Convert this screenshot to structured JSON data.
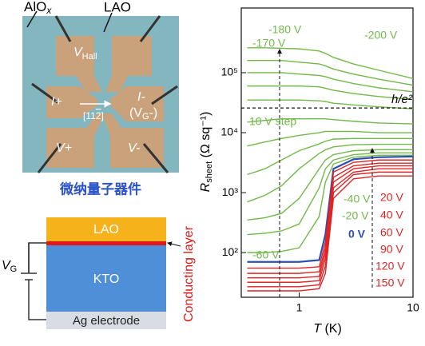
{
  "photo": {
    "labels": {
      "alox": "AlO",
      "alox_sub": "x",
      "lao": "LAO",
      "vhall": "V",
      "vhall_sub": "Hall",
      "iplus": "I+",
      "iminus": "I-",
      "vg_open": "(V",
      "vg_sub": "G",
      "vg_close": "-)",
      "direction": "[11",
      "direction_bar": "2",
      "direction_close": "]",
      "vplus": "V+",
      "vminus": "V-"
    },
    "caption": "微纳量子器件"
  },
  "schematic": {
    "lao": "LAO",
    "kto": "KTO",
    "electrode": "Ag electrode",
    "conducting": "Conducting layer",
    "vg": "V",
    "vg_sub": "G"
  },
  "chart_data": {
    "type": "line",
    "log_x": true,
    "log_y": true,
    "x": [
      0.35,
      0.5,
      0.7,
      1,
      1.5,
      1.7,
      2,
      3,
      5,
      10
    ],
    "xlim": [
      0.31,
      10
    ],
    "ylim": [
      18,
      1200000
    ],
    "xticks": [
      1,
      10
    ],
    "yticks": [
      {
        "value": 100,
        "label": "10²"
      },
      {
        "value": 1000,
        "label": "10³"
      },
      {
        "value": 10000,
        "label": "10⁴"
      },
      {
        "value": 100000,
        "label": "10⁵"
      }
    ],
    "xlabel": {
      "symbol": "T",
      "unit": " (K)"
    },
    "ylabel": {
      "symbol": "R",
      "subscript": "sheet",
      "unit": " (Ω sq⁻¹)"
    },
    "reference_line": {
      "label": "h/e²",
      "value": 25813
    },
    "series": [
      {
        "color": "#72b84a",
        "values": [
          260000,
          260000,
          255000,
          250000,
          230000,
          210000,
          180000,
          140000,
          110000,
          80000
        ]
      },
      {
        "color": "#72b84a",
        "values": [
          160000,
          160000,
          160000,
          150000,
          140000,
          130000,
          115000,
          95000,
          78000,
          62000
        ]
      },
      {
        "color": "#72b84a",
        "values": [
          100000,
          100000,
          100000,
          95000,
          90000,
          86000,
          78000,
          66000,
          56000,
          48000
        ]
      },
      {
        "color": "#72b84a",
        "values": [
          60000,
          60000,
          60000,
          60000,
          58000,
          55000,
          51000,
          45000,
          40000,
          36000
        ]
      },
      {
        "color": "#72b84a",
        "values": [
          35000,
          35000,
          35000,
          35000,
          34000,
          33000,
          31000,
          29000,
          27000,
          25000
        ]
      },
      {
        "color": "#72b84a",
        "values": [
          15000,
          16000,
          17000,
          17000,
          17000,
          17000,
          16500,
          15500,
          14500,
          14000
        ]
      },
      {
        "color": "#72b84a",
        "values": [
          6000,
          7000,
          8000,
          9000,
          10000,
          10500,
          10500,
          10500,
          10000,
          10000
        ]
      },
      {
        "color": "#72b84a",
        "values": [
          2000,
          2500,
          3500,
          5000,
          6500,
          7200,
          7800,
          8000,
          8000,
          8000
        ]
      },
      {
        "color": "#72b84a",
        "values": [
          700,
          900,
          1300,
          2500,
          4500,
          5200,
          5800,
          6300,
          6400,
          6400
        ]
      },
      {
        "color": "#72b84a",
        "values": [
          350,
          380,
          450,
          800,
          2500,
          3500,
          4300,
          5000,
          5200,
          5200
        ]
      },
      {
        "color": "#72b84a",
        "values": [
          200,
          210,
          230,
          300,
          1200,
          2500,
          3500,
          4300,
          4600,
          4600
        ]
      },
      {
        "color": "#72b84a",
        "values": [
          100,
          100,
          105,
          120,
          400,
          1500,
          3000,
          3900,
          4200,
          4200
        ]
      },
      {
        "color": "#2b4fb5",
        "values": [
          70,
          70,
          70,
          70,
          75,
          200,
          2500,
          3600,
          3900,
          4000
        ]
      },
      {
        "color": "#e02424",
        "values": [
          55,
          55,
          55,
          55,
          58,
          150,
          2200,
          3200,
          3500,
          3500
        ]
      },
      {
        "color": "#e02424",
        "values": [
          45,
          45,
          45,
          45,
          48,
          120,
          1800,
          2800,
          3100,
          3100
        ]
      },
      {
        "color": "#e02424",
        "values": [
          38,
          38,
          38,
          38,
          40,
          100,
          1500,
          2500,
          2800,
          2800
        ]
      },
      {
        "color": "#e02424",
        "values": [
          32,
          32,
          32,
          32,
          34,
          80,
          1200,
          2200,
          2500,
          2500
        ]
      },
      {
        "color": "#e02424",
        "values": [
          27,
          27,
          27,
          27,
          29,
          60,
          1000,
          2000,
          2200,
          2200
        ]
      },
      {
        "color": "#e02424",
        "values": [
          23,
          23,
          23,
          23,
          25,
          45,
          800,
          1700,
          1900,
          1900
        ]
      }
    ],
    "annotations": [
      {
        "text": "-180 V",
        "color": "#72b84a"
      },
      {
        "text": "-170 V",
        "color": "#72b84a"
      },
      {
        "text": "-200 V",
        "color": "#72b84a"
      },
      {
        "text": "10 V step",
        "color": "#72b84a"
      },
      {
        "text": "-40 V",
        "color": "#72b84a"
      },
      {
        "text": "-20 V",
        "color": "#72b84a"
      },
      {
        "text": "0 V",
        "color": "#2b4fb5"
      },
      {
        "text": "-60 V",
        "color": "#72b84a"
      },
      {
        "text": "20 V",
        "color": "#e02424"
      },
      {
        "text": "40 V",
        "color": "#e02424"
      },
      {
        "text": "60 V",
        "color": "#e02424"
      },
      {
        "text": "90 V",
        "color": "#e02424"
      },
      {
        "text": "120 V",
        "color": "#e02424"
      },
      {
        "text": "150 V",
        "color": "#e02424"
      }
    ]
  }
}
